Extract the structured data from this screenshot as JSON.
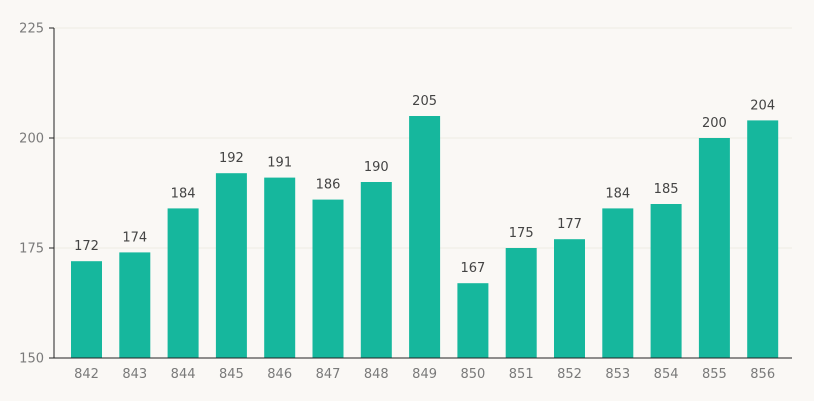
{
  "chart_data": {
    "type": "bar",
    "title": "",
    "xlabel": "",
    "ylabel": "",
    "categories": [
      "842",
      "843",
      "844",
      "845",
      "846",
      "847",
      "848",
      "849",
      "850",
      "851",
      "852",
      "853",
      "854",
      "855",
      "856"
    ],
    "values": [
      172,
      174,
      184,
      192,
      191,
      186,
      190,
      205,
      167,
      175,
      177,
      184,
      185,
      200,
      204
    ],
    "ylim": [
      150,
      225
    ],
    "yticks": [
      150,
      175,
      200,
      225
    ],
    "grid": true,
    "legend": "none",
    "show_data_labels": true
  },
  "colors": {
    "bar": "#16b79d",
    "background": "#faf8f5",
    "axis": "#222222",
    "grid": "#efebe3"
  }
}
